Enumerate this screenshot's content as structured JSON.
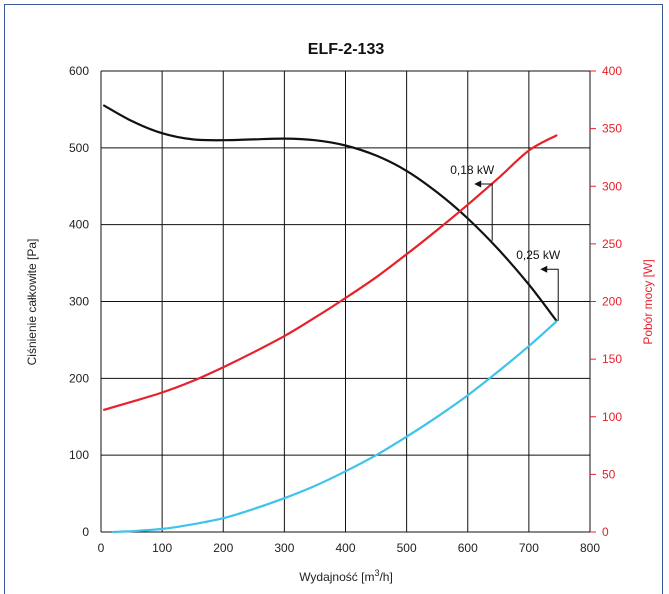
{
  "chart_data": {
    "type": "line",
    "title": "ELF-2-133",
    "xlabel": "Wydajność [m³/h]",
    "xlabel_parts": {
      "main": "Wydajność [m",
      "sup": "3",
      "end": "/h]"
    },
    "ylabel": "Ciśnienie całkowite [Pa]",
    "y2label": "Pobór mocy [W]",
    "xlim": [
      0,
      800
    ],
    "ylim": [
      0,
      600
    ],
    "y2lim": [
      0,
      400
    ],
    "x_ticks": [
      "0",
      "100",
      "200",
      "300",
      "400",
      "500",
      "600",
      "700",
      "800"
    ],
    "y_ticks": [
      "0",
      "100",
      "200",
      "300",
      "400",
      "500",
      "600"
    ],
    "y2_ticks": [
      "0",
      "50",
      "100",
      "150",
      "200",
      "250",
      "300",
      "350",
      "400"
    ],
    "grid": true,
    "colors": {
      "pressure": "#111111",
      "power": "#e8202a",
      "system": "#3ec3ea",
      "right_axis": "#e8202a",
      "grid": "#111111"
    },
    "series": [
      {
        "key": "pressure",
        "axis": "left",
        "x": [
          5,
          50,
          100,
          150,
          200,
          250,
          300,
          350,
          400,
          450,
          500,
          550,
          600,
          650,
          700,
          745
        ],
        "y": [
          555,
          535,
          519,
          511,
          510,
          511,
          512,
          510,
          503,
          490,
          470,
          442,
          408,
          368,
          322,
          275
        ]
      },
      {
        "key": "power",
        "axis": "right",
        "x": [
          5,
          50,
          100,
          150,
          200,
          250,
          300,
          350,
          400,
          450,
          500,
          550,
          600,
          650,
          700,
          745
        ],
        "y": [
          106,
          113,
          121,
          131,
          143,
          156,
          170,
          186,
          203,
          221,
          241,
          262,
          284,
          307,
          331,
          344
        ]
      },
      {
        "key": "system",
        "axis": "left",
        "x": [
          20,
          50,
          100,
          150,
          200,
          250,
          300,
          350,
          400,
          450,
          500,
          550,
          600,
          650,
          700,
          745
        ],
        "y": [
          0,
          1,
          4,
          10,
          18,
          30,
          44,
          60,
          79,
          100,
          124,
          150,
          178,
          209,
          242,
          274
        ]
      }
    ],
    "annotations": [
      {
        "label": "0,18 kW",
        "x": 640,
        "y": 379,
        "curve_y": 453
      },
      {
        "label": "0,25 kW",
        "x": 748,
        "y": 275,
        "curve_y": 342
      }
    ]
  }
}
